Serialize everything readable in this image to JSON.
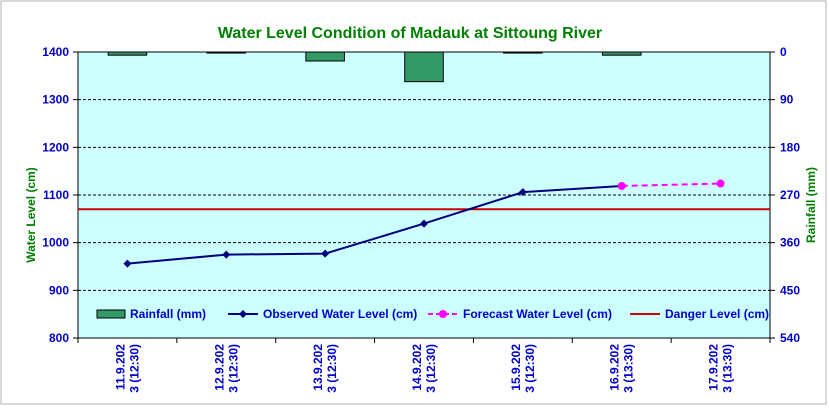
{
  "chart_data": {
    "type": "line",
    "title": "Water Level Condition of Madauk at Sittoung River",
    "ylabel_left": "Water Level (cm)",
    "ylabel_right": "Rainfall (mm)",
    "y_left_range": [
      800,
      1400
    ],
    "y_left_ticks": [
      800,
      900,
      1000,
      1100,
      1200,
      1300,
      1400
    ],
    "y_right_range": [
      0,
      540
    ],
    "y_right_ticks": [
      0,
      90,
      180,
      270,
      360,
      450,
      540
    ],
    "y_right_reversed": true,
    "grid": "horizontal dashed",
    "legend_position": "bottom inside plot",
    "x_labels": [
      [
        "11.9.202",
        "3 (12:30)"
      ],
      [
        "12.9.202",
        "3 (12:30)"
      ],
      [
        "13.9.202",
        "3 (12:30)"
      ],
      [
        "14.9.202",
        "3 (12:30)"
      ],
      [
        "15.9.202",
        "3 (12:30)"
      ],
      [
        "16.9.202",
        "3 (13:30)"
      ],
      [
        "17.9.202",
        "3 (13:30)"
      ]
    ],
    "series": [
      {
        "name": "Rainfall (mm)",
        "kind": "bar",
        "axis": "right",
        "color": "#339966",
        "values": [
          6,
          2,
          17,
          56,
          2,
          6,
          null
        ]
      },
      {
        "name": "Observed Water Level (cm)",
        "kind": "line",
        "axis": "left",
        "color": "#000080",
        "marker": "diamond",
        "values": [
          956,
          975,
          977,
          1040,
          1106,
          1119,
          null
        ]
      },
      {
        "name": "Forecast Water Level (cm)",
        "kind": "line-dashed",
        "axis": "left",
        "color": "#ff00ff",
        "marker": "circle",
        "values": [
          null,
          null,
          null,
          null,
          null,
          1119,
          1124
        ]
      },
      {
        "name": "Danger Level (cm)",
        "kind": "hline",
        "axis": "left",
        "color": "#cc0000",
        "value": 1070
      }
    ],
    "colors": {
      "plot_background": "#ccffff",
      "title": "#008000",
      "tick_text": "#0000cc",
      "axis_title": "#008000",
      "legend_text": "#0000cc"
    }
  }
}
